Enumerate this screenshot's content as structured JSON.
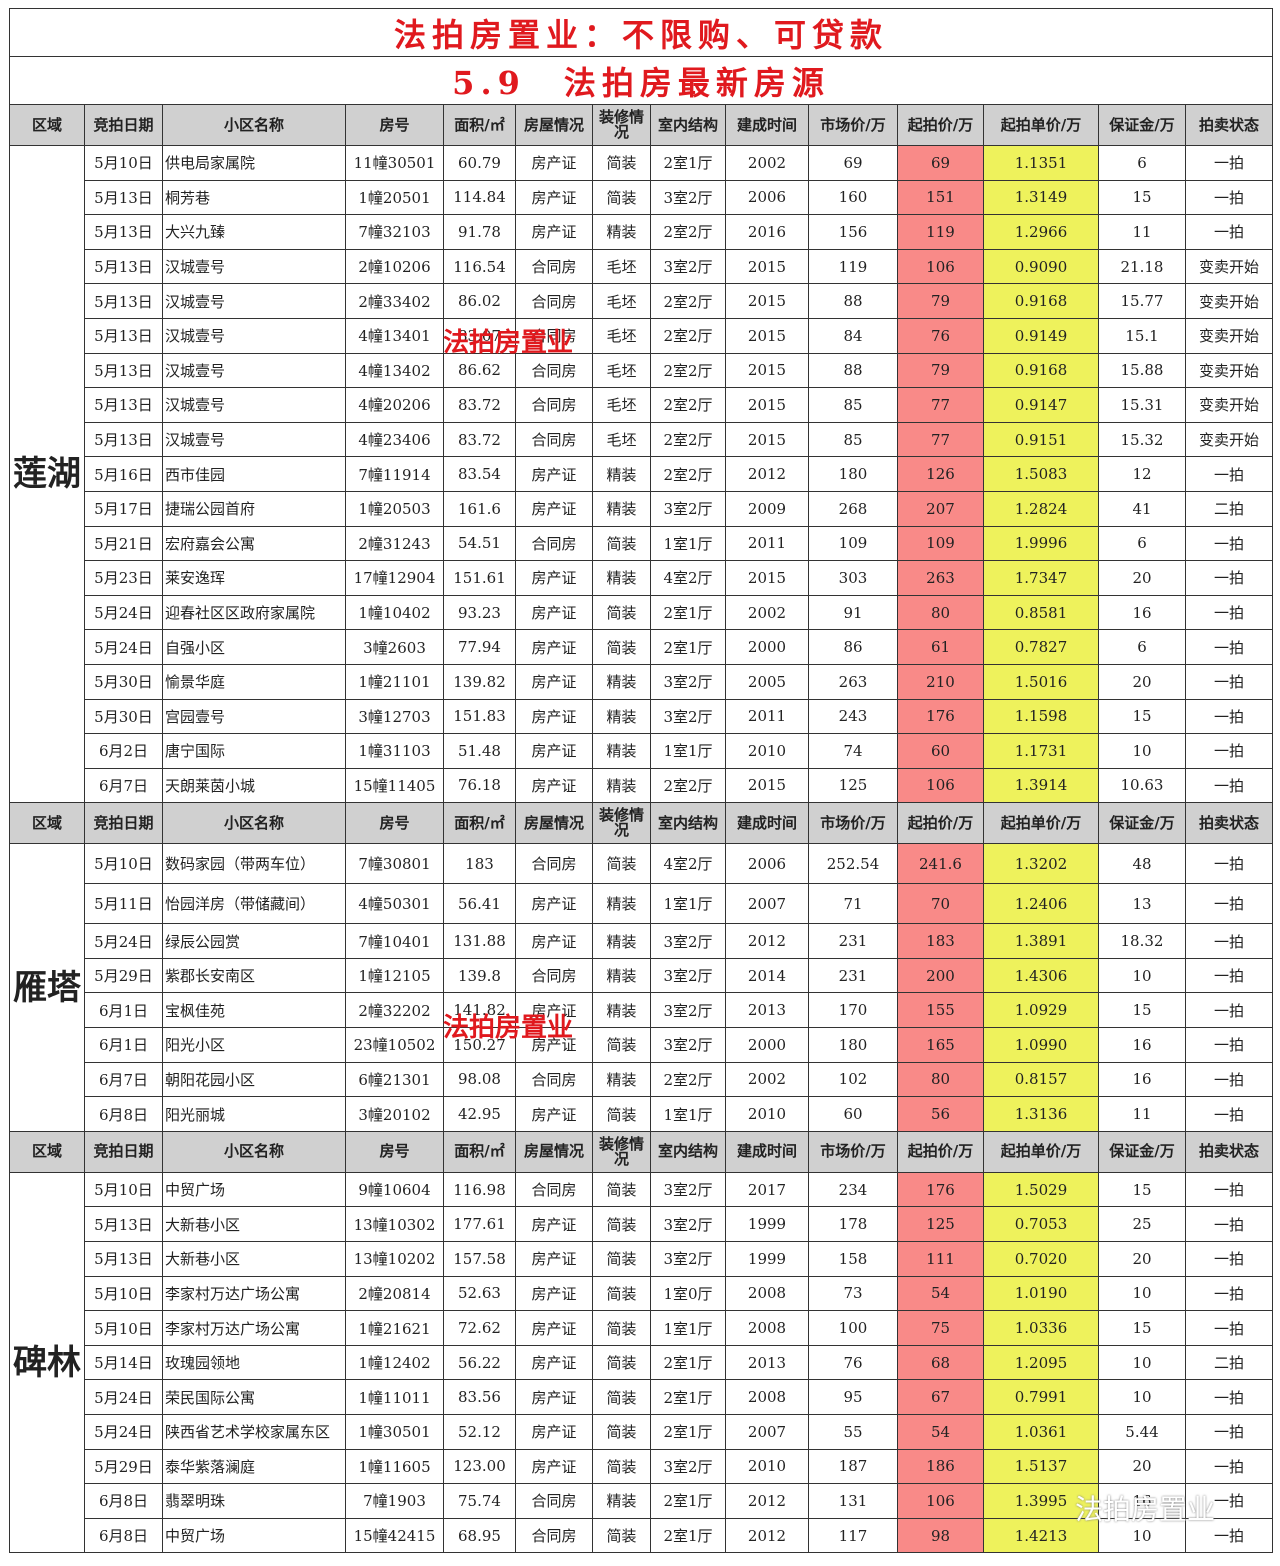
{
  "title": "法拍房置业：不限购、可贷款",
  "subtitle": "5.9　法拍房最新房源",
  "headers": [
    "区域",
    "竞拍日期",
    "小区名称",
    "房号",
    "面积/㎡",
    "房屋情况",
    "装修情况",
    "室内结构",
    "建成时间",
    "市场价/万",
    "起拍价/万",
    "起拍单价/万",
    "保证金/万",
    "拍卖状态"
  ],
  "watermark": "法拍房置业",
  "wechat_watermark": "法拍房置业",
  "colors": {
    "start_price": "#f98a88",
    "unit_price": "#eef25c",
    "title": "#e0191e",
    "header": "#d0d0d0"
  },
  "sections": [
    {
      "region": "莲湖",
      "rows": [
        [
          "5月10日",
          "供电局家属院",
          "11幢30501",
          "60.79",
          "房产证",
          "简装",
          "2室1厅",
          "2002",
          "69",
          "69",
          "1.1351",
          "6",
          "一拍"
        ],
        [
          "5月13日",
          "桐芳巷",
          "1幢20501",
          "114.84",
          "房产证",
          "简装",
          "3室2厅",
          "2006",
          "160",
          "151",
          "1.3149",
          "15",
          "一拍"
        ],
        [
          "5月13日",
          "大兴九臻",
          "7幢32103",
          "91.78",
          "房产证",
          "精装",
          "2室2厅",
          "2016",
          "156",
          "119",
          "1.2966",
          "11",
          "一拍"
        ],
        [
          "5月13日",
          "汉城壹号",
          "2幢10206",
          "116.54",
          "合同房",
          "毛坯",
          "3室2厅",
          "2015",
          "119",
          "106",
          "0.9090",
          "21.18",
          "变卖开始"
        ],
        [
          "5月13日",
          "汉城壹号",
          "2幢33402",
          "86.02",
          "合同房",
          "毛坯",
          "2室2厅",
          "2015",
          "88",
          "79",
          "0.9168",
          "15.77",
          "变卖开始"
        ],
        [
          "5月13日",
          "汉城壹号",
          "4幢13401",
          "83.07",
          "合同房",
          "毛坯",
          "2室2厅",
          "2015",
          "84",
          "76",
          "0.9149",
          "15.1",
          "变卖开始"
        ],
        [
          "5月13日",
          "汉城壹号",
          "4幢13402",
          "86.62",
          "合同房",
          "毛坯",
          "2室2厅",
          "2015",
          "88",
          "79",
          "0.9168",
          "15.88",
          "变卖开始"
        ],
        [
          "5月13日",
          "汉城壹号",
          "4幢20206",
          "83.72",
          "合同房",
          "毛坯",
          "2室2厅",
          "2015",
          "85",
          "77",
          "0.9147",
          "15.31",
          "变卖开始"
        ],
        [
          "5月13日",
          "汉城壹号",
          "4幢23406",
          "83.72",
          "合同房",
          "毛坯",
          "2室2厅",
          "2015",
          "85",
          "77",
          "0.9151",
          "15.32",
          "变卖开始"
        ],
        [
          "5月16日",
          "西市佳园",
          "7幢11914",
          "83.54",
          "房产证",
          "精装",
          "2室2厅",
          "2012",
          "180",
          "126",
          "1.5083",
          "12",
          "一拍"
        ],
        [
          "5月17日",
          "捷瑞公园首府",
          "1幢20503",
          "161.6",
          "房产证",
          "精装",
          "3室2厅",
          "2009",
          "268",
          "207",
          "1.2824",
          "41",
          "二拍"
        ],
        [
          "5月21日",
          "宏府嘉会公寓",
          "2幢31243",
          "54.51",
          "合同房",
          "简装",
          "1室1厅",
          "2011",
          "109",
          "109",
          "1.9996",
          "6",
          "一拍"
        ],
        [
          "5月23日",
          "莱安逸珲",
          "17幢12904",
          "151.61",
          "房产证",
          "精装",
          "4室2厅",
          "2015",
          "303",
          "263",
          "1.7347",
          "20",
          "一拍"
        ],
        [
          "5月24日",
          "迎春社区区政府家属院",
          "1幢10402",
          "93.23",
          "房产证",
          "简装",
          "2室1厅",
          "2002",
          "91",
          "80",
          "0.8581",
          "16",
          "一拍"
        ],
        [
          "5月24日",
          "自强小区",
          "3幢2603",
          "77.94",
          "房产证",
          "简装",
          "2室1厅",
          "2000",
          "86",
          "61",
          "0.7827",
          "6",
          "一拍"
        ],
        [
          "5月30日",
          "愉景华庭",
          "1幢21101",
          "139.82",
          "房产证",
          "精装",
          "3室2厅",
          "2005",
          "263",
          "210",
          "1.5016",
          "20",
          "一拍"
        ],
        [
          "5月30日",
          "宫园壹号",
          "3幢12703",
          "151.83",
          "房产证",
          "精装",
          "3室2厅",
          "2011",
          "243",
          "176",
          "1.1598",
          "15",
          "一拍"
        ],
        [
          "6月2日",
          "唐宁国际",
          "1幢31103",
          "51.48",
          "房产证",
          "精装",
          "1室1厅",
          "2010",
          "74",
          "60",
          "1.1731",
          "10",
          "一拍"
        ],
        [
          "6月7日",
          "天朗莱茵小城",
          "15幢11405",
          "76.18",
          "房产证",
          "精装",
          "2室2厅",
          "2015",
          "125",
          "106",
          "1.3914",
          "10.63",
          "一拍"
        ]
      ]
    },
    {
      "region": "雁塔",
      "rows": [
        [
          "5月10日",
          "数码家园（带两车位）",
          "7幢30801",
          "183",
          "合同房",
          "简装",
          "4室2厅",
          "2006",
          "252.54",
          "241.6",
          "1.3202",
          "48",
          "一拍"
        ],
        [
          "5月11日",
          "怡园洋房（带储藏间）",
          "4幢50301",
          "56.41",
          "房产证",
          "精装",
          "1室1厅",
          "2007",
          "71",
          "70",
          "1.2406",
          "13",
          "一拍"
        ],
        [
          "5月24日",
          "绿辰公园赏",
          "7幢10401",
          "131.88",
          "房产证",
          "精装",
          "3室2厅",
          "2012",
          "231",
          "183",
          "1.3891",
          "18.32",
          "一拍"
        ],
        [
          "5月29日",
          "紫郡长安南区",
          "1幢12105",
          "139.8",
          "合同房",
          "精装",
          "3室2厅",
          "2014",
          "231",
          "200",
          "1.4306",
          "10",
          "一拍"
        ],
        [
          "6月1日",
          "宝枫佳苑",
          "2幢32202",
          "141.82",
          "房产证",
          "精装",
          "3室2厅",
          "2013",
          "170",
          "155",
          "1.0929",
          "15",
          "一拍"
        ],
        [
          "6月1日",
          "阳光小区",
          "23幢10502",
          "150.27",
          "房产证",
          "简装",
          "3室2厅",
          "2000",
          "180",
          "165",
          "1.0990",
          "16",
          "一拍"
        ],
        [
          "6月7日",
          "朝阳花园小区",
          "6幢21301",
          "98.08",
          "合同房",
          "精装",
          "2室2厅",
          "2002",
          "102",
          "80",
          "0.8157",
          "16",
          "一拍"
        ],
        [
          "6月8日",
          "阳光丽城",
          "3幢20102",
          "42.95",
          "房产证",
          "简装",
          "1室1厅",
          "2010",
          "60",
          "56",
          "1.3136",
          "11",
          "一拍"
        ]
      ]
    },
    {
      "region": "碑林",
      "rows": [
        [
          "5月10日",
          "中贸广场",
          "9幢10604",
          "116.98",
          "合同房",
          "简装",
          "3室2厅",
          "2017",
          "234",
          "176",
          "1.5029",
          "15",
          "一拍"
        ],
        [
          "5月13日",
          "大新巷小区",
          "13幢10302",
          "177.61",
          "房产证",
          "简装",
          "3室2厅",
          "1999",
          "178",
          "125",
          "0.7053",
          "25",
          "一拍"
        ],
        [
          "5月13日",
          "大新巷小区",
          "13幢10202",
          "157.58",
          "房产证",
          "简装",
          "3室2厅",
          "1999",
          "158",
          "111",
          "0.7020",
          "20",
          "一拍"
        ],
        [
          "5月10日",
          "李家村万达广场公寓",
          "2幢20814",
          "52.63",
          "房产证",
          "简装",
          "1室0厅",
          "2008",
          "73",
          "54",
          "1.0190",
          "10",
          "一拍"
        ],
        [
          "5月10日",
          "李家村万达广场公寓",
          "1幢21621",
          "72.62",
          "房产证",
          "简装",
          "1室1厅",
          "2008",
          "100",
          "75",
          "1.0336",
          "15",
          "一拍"
        ],
        [
          "5月14日",
          "玫瑰园领地",
          "1幢12402",
          "56.22",
          "房产证",
          "简装",
          "2室1厅",
          "2013",
          "76",
          "68",
          "1.2095",
          "10",
          "二拍"
        ],
        [
          "5月24日",
          "荣民国际公寓",
          "1幢11011",
          "83.56",
          "房产证",
          "简装",
          "2室1厅",
          "2008",
          "95",
          "67",
          "0.7991",
          "10",
          "一拍"
        ],
        [
          "5月24日",
          "陕西省艺术学校家属东区",
          "1幢30501",
          "52.12",
          "房产证",
          "简装",
          "2室1厅",
          "2007",
          "55",
          "54",
          "1.0361",
          "5.44",
          "一拍"
        ],
        [
          "5月29日",
          "泰华紫落澜庭",
          "1幢11605",
          "123.00",
          "房产证",
          "简装",
          "3室2厅",
          "2010",
          "187",
          "186",
          "1.5137",
          "20",
          "一拍"
        ],
        [
          "6月8日",
          "翡翠明珠",
          "7幢1903",
          "75.74",
          "合同房",
          "精装",
          "2室1厅",
          "2012",
          "131",
          "106",
          "1.3995",
          "16",
          "一拍"
        ],
        [
          "6月8日",
          "中贸广场",
          "15幢42415",
          "68.95",
          "合同房",
          "简装",
          "2室1厅",
          "2012",
          "117",
          "98",
          "1.4213",
          "10",
          "一拍"
        ]
      ]
    }
  ]
}
